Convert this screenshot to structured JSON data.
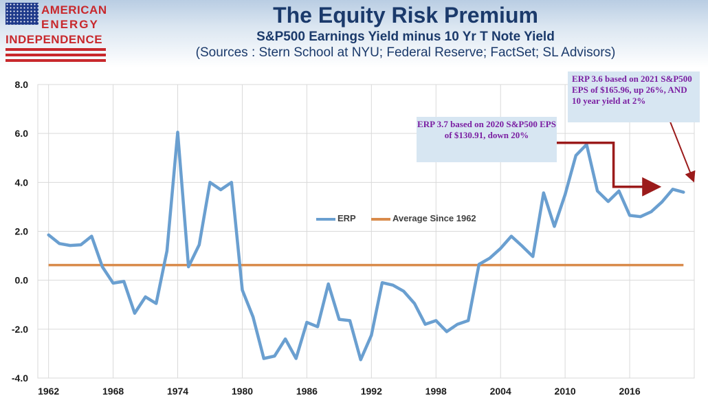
{
  "logo": {
    "line1": "AMERICAN",
    "line2": "ENERGY",
    "line3": "INDEPENDENCE"
  },
  "header": {
    "title": "The Equity Risk Premium",
    "subtitle": "S&P500 Earnings Yield minus 10 Yr T Note Yield",
    "sources": "(Sources : Stern School at NYU; Federal Reserve; FactSet; SL Advisors)"
  },
  "annotations": {
    "erp_2020": "ERP 3.7 based on 2020 S&P500 EPS of $130.91, down 20%",
    "erp_2021": "ERP 3.6 based on 2021 S&P500 EPS of $165.96, up 26%, AND 10 year yield at 2%"
  },
  "colors": {
    "erp": "#6a9fd0",
    "average": "#d98b4b",
    "arrow": "#9b1b1b",
    "annotation_text": "#7b1fa2",
    "title": "#1b3a6b"
  },
  "chart_data": {
    "type": "line",
    "xlabel": "",
    "ylabel": "",
    "ylim": [
      -4.0,
      8.0
    ],
    "yticks": [
      "-4.0",
      "-2.0",
      "0.0",
      "2.0",
      "4.0",
      "6.0",
      "8.0"
    ],
    "xticks": [
      "1962",
      "1968",
      "1974",
      "1980",
      "1986",
      "1992",
      "1998",
      "2004",
      "2010",
      "2016"
    ],
    "grid": true,
    "legend_placement": "center",
    "series": [
      {
        "name": "ERP",
        "x": [
          1962,
          1963,
          1964,
          1965,
          1966,
          1967,
          1968,
          1969,
          1970,
          1971,
          1972,
          1973,
          1974,
          1975,
          1976,
          1977,
          1978,
          1979,
          1980,
          1981,
          1982,
          1983,
          1984,
          1985,
          1986,
          1987,
          1988,
          1989,
          1990,
          1991,
          1992,
          1993,
          1994,
          1995,
          1996,
          1997,
          1998,
          1999,
          2000,
          2001,
          2002,
          2003,
          2004,
          2005,
          2006,
          2007,
          2008,
          2009,
          2010,
          2011,
          2012,
          2013,
          2014,
          2015,
          2016,
          2017,
          2018,
          2019,
          2020,
          2021
        ],
        "values": [
          1.85,
          1.5,
          1.42,
          1.45,
          1.8,
          0.55,
          -0.12,
          -0.05,
          -1.35,
          -0.68,
          -0.95,
          1.2,
          6.05,
          0.55,
          1.45,
          4.0,
          3.7,
          4.0,
          -0.4,
          -1.5,
          -3.2,
          -3.1,
          -2.4,
          -3.2,
          -1.72,
          -1.9,
          -0.15,
          -1.6,
          -1.65,
          -3.25,
          -2.25,
          -0.1,
          -0.2,
          -0.45,
          -0.95,
          -1.8,
          -1.65,
          -2.1,
          -1.8,
          -1.65,
          0.65,
          0.9,
          1.3,
          1.8,
          1.4,
          0.97,
          3.57,
          2.2,
          3.5,
          5.1,
          5.55,
          3.65,
          3.22,
          3.65,
          2.65,
          2.6,
          2.8,
          3.2,
          3.72,
          3.6
        ]
      },
      {
        "name": "Average Since 1962",
        "x": [
          1962,
          2021
        ],
        "values": [
          0.62,
          0.62
        ]
      }
    ]
  }
}
